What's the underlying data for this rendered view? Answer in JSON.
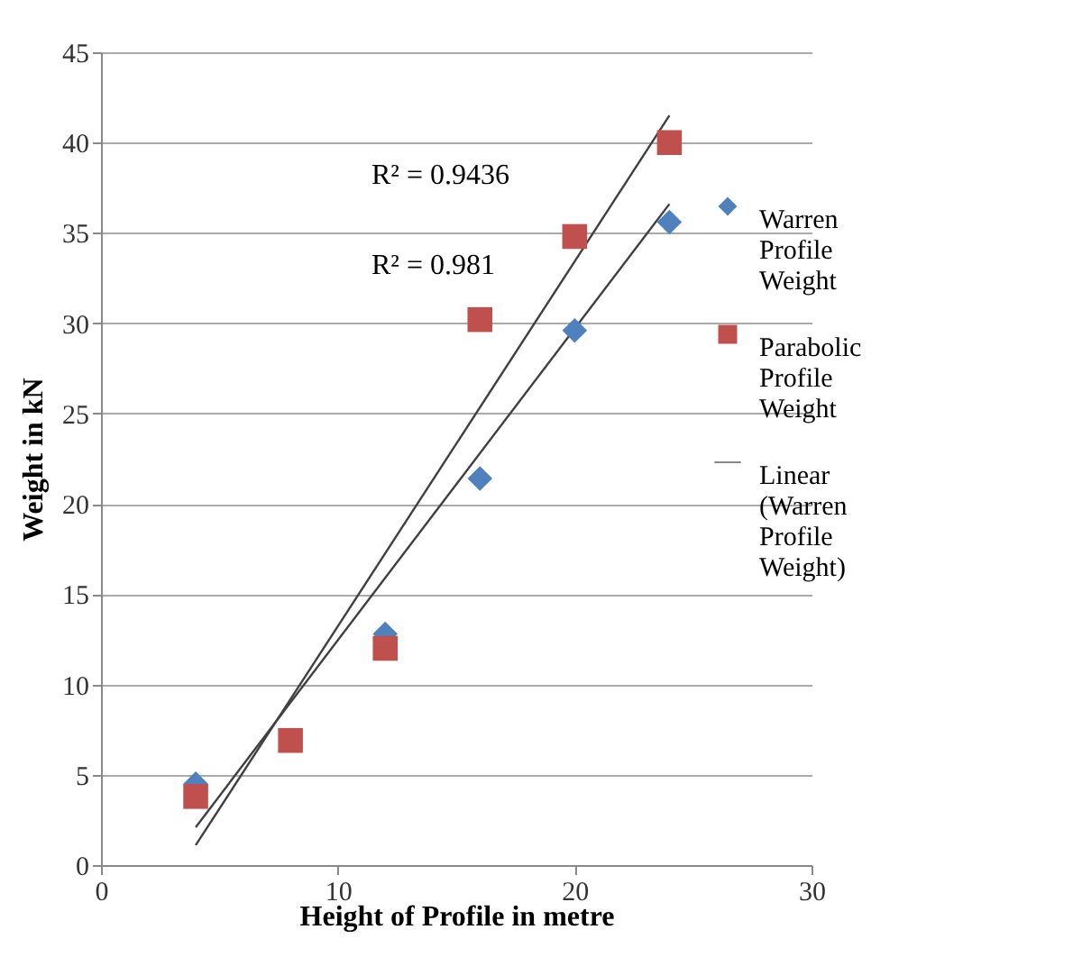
{
  "chart_data": {
    "type": "scatter",
    "xlabel": "Height of Profile in metre",
    "ylabel": "Weight in kN",
    "annotations": [
      "R² = 0.9436",
      "R² = 0.981"
    ],
    "series": [
      {
        "name": "Warren Profile Weight",
        "color": "#4f81bd",
        "marker": "diamond",
        "x": [
          4,
          8,
          12,
          16,
          20,
          24
        ],
        "values": [
          4.5,
          null,
          12.8,
          21.4,
          29.6,
          35.6
        ]
      },
      {
        "name": "Parabolic Profile Weight",
        "color": "#c0504d",
        "marker": "square",
        "x": [
          4,
          8,
          12,
          16,
          20,
          24
        ],
        "values": [
          3.8,
          6.9,
          12.0,
          30.2,
          34.8,
          40.0
        ]
      },
      {
        "name": "Linear (Warren Profile Weight)",
        "type": "line",
        "color": "#404040",
        "x": [
          4,
          24
        ],
        "values": [
          2.1,
          36.6
        ]
      },
      {
        "type": "line",
        "color": "#404040",
        "x": [
          4,
          24
        ],
        "values": [
          1.1,
          41.5
        ]
      }
    ],
    "xlim": [
      0,
      30
    ],
    "xticks": [
      0,
      10,
      20,
      30
    ],
    "ylim": [
      0,
      45
    ],
    "yticks": [
      0,
      5,
      10,
      15,
      20,
      25,
      30,
      35,
      40,
      45
    ],
    "grid": "y",
    "legend": "right"
  }
}
